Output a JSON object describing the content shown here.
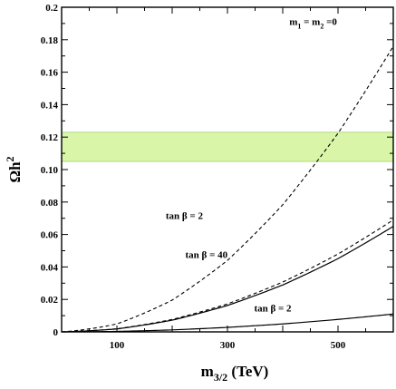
{
  "chart_data": {
    "type": "line",
    "title": "",
    "xlabel": "m",
    "xlabel_sub": "3/2",
    "xlabel_unit": " (TeV)",
    "ylabel": "Ωh",
    "ylabel_sup": "2",
    "xlim": [
      0,
      600
    ],
    "ylim": [
      0,
      0.2
    ],
    "xticks": [
      100,
      300,
      500
    ],
    "xtick_labels": [
      "100",
      "300",
      "500"
    ],
    "yticks": [
      0,
      0.02,
      0.04,
      0.06,
      0.08,
      0.1,
      0.12,
      0.14,
      0.16,
      0.18,
      0.2
    ],
    "ytick_labels": [
      "0",
      "0.02",
      "0.04",
      "0.06",
      "0.08",
      "0.10",
      "0.12",
      "0.14",
      "0.16",
      "0.18",
      "0.2"
    ],
    "grid": false,
    "band": {
      "y_min": 0.105,
      "y_max": 0.123,
      "color": "#d8f5a8",
      "edge_color": "#a9cf72"
    },
    "series": [
      {
        "style": "dashed",
        "x": [
          0,
          100,
          200,
          300,
          400,
          500,
          600
        ],
        "y": [
          0,
          0.0049,
          0.0196,
          0.0441,
          0.0784,
          0.1225,
          0.176
        ]
      },
      {
        "style": "dashed",
        "x": [
          0,
          100,
          200,
          300,
          400,
          500,
          600
        ],
        "y": [
          0,
          0.0019,
          0.0076,
          0.0172,
          0.0307,
          0.048,
          0.069
        ]
      },
      {
        "style": "solid",
        "x": [
          0,
          100,
          200,
          300,
          400,
          500,
          600
        ],
        "y": [
          0,
          0.0018,
          0.0072,
          0.0163,
          0.0289,
          0.0451,
          0.065
        ]
      },
      {
        "style": "solid",
        "x": [
          0,
          100,
          200,
          300,
          400,
          500,
          600
        ],
        "y": [
          0,
          0.0003,
          0.0012,
          0.0028,
          0.0049,
          0.0077,
          0.011
        ]
      }
    ],
    "annotations": [
      {
        "parts": [
          "m",
          "1",
          " = m",
          "2",
          " =0"
        ],
        "x": 455,
        "y": 0.189
      },
      {
        "text": "tan β = 2",
        "x": 222,
        "y": 0.0695
      },
      {
        "text": "tan β = 40",
        "x": 262,
        "y": 0.0455
      },
      {
        "text": "tan β = 2",
        "x": 382,
        "y": 0.0125
      }
    ]
  }
}
